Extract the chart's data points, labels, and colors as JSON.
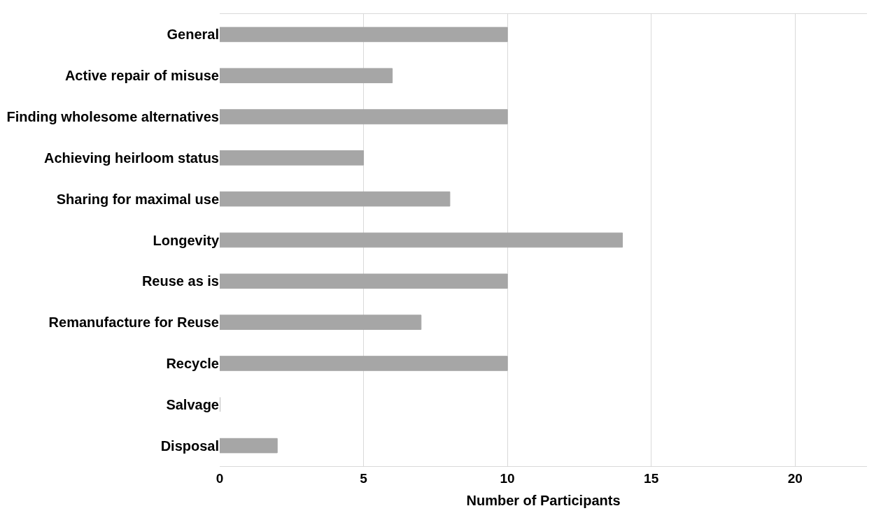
{
  "chart_data": {
    "type": "bar",
    "orientation": "horizontal",
    "xlabel": "Number of Participants",
    "categories": [
      "General",
      "Active repair of misuse",
      "Finding wholesome alternatives",
      "Achieving heirloom status",
      "Sharing for maximal use",
      "Longevity",
      "Reuse as is",
      "Remanufacture for Reuse",
      "Recycle",
      "Salvage",
      "Disposal"
    ],
    "values": [
      10,
      6,
      10,
      5,
      8,
      14,
      10,
      7,
      10,
      0,
      2
    ],
    "color": "#a6a6a6",
    "xlim": [
      0,
      22.5
    ],
    "xticks": [
      0,
      5,
      10,
      15,
      20
    ],
    "grid": "x"
  }
}
